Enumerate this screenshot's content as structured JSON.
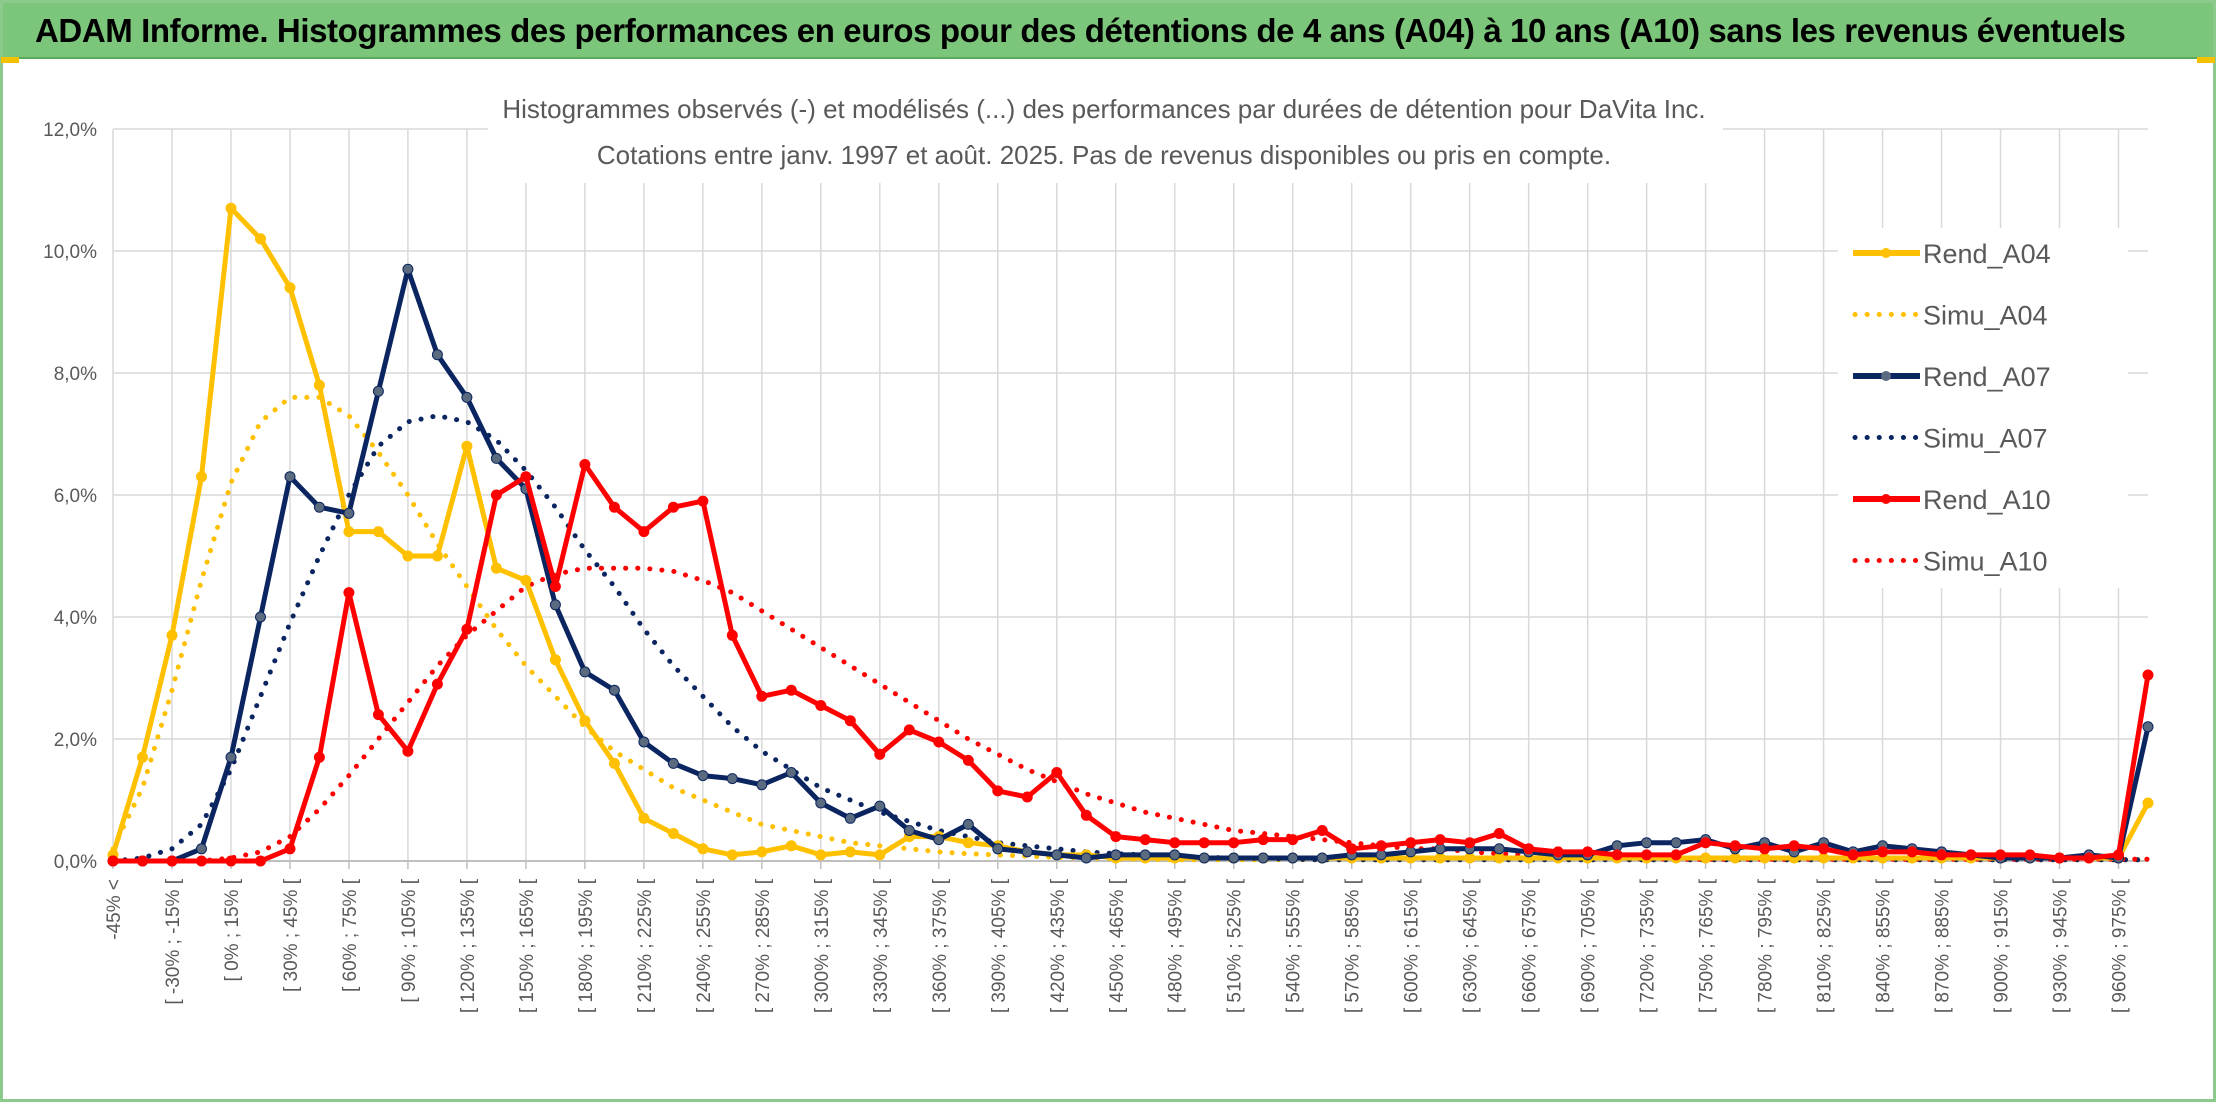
{
  "header": {
    "title": "ADAM Informe. Histogrammes des performances en euros pour des détentions de 4 ans (A04) à 10 ans (A10) sans les revenus éventuels"
  },
  "colors": {
    "header_bg": "#7cc67c",
    "grid": "#d9d9d9",
    "A04": "#ffc000",
    "A07": "#0b2560",
    "A10": "#ff0000",
    "A07_marker": "#5b6b7f"
  },
  "chart_data": {
    "type": "line",
    "title_line1": "Histogrammes observés (-) et modélisés (...) des performances par durées de détention pour DaVita Inc.",
    "title_line2": "Cotations entre janv. 1997 et août. 2025. Pas de revenus disponibles ou pris en compte.",
    "ylim": [
      0,
      12
    ],
    "yticks": [
      "0,0%",
      "2,0%",
      "4,0%",
      "6,0%",
      "8,0%",
      "10,0%",
      "12,0%"
    ],
    "grid": true,
    "legend_position": "right",
    "x_tick_labels": [
      "-45% <",
      "[ -30% ; -15% [",
      "[ 0% ; 15% [",
      "[ 30% ; 45% [",
      "[ 60% ; 75% [",
      "[ 90% ; 105% [",
      "[ 120% ; 135% [",
      "[ 150% ; 165% [",
      "[ 180% ; 195% [",
      "[ 210% ; 225% [",
      "[ 240% ; 255% [",
      "[ 270% ; 285% [",
      "[ 300% ; 315% [",
      "[ 330% ; 345% [",
      "[ 360% ; 375% [",
      "[ 390% ; 405% [",
      "[ 420% ; 435% [",
      "[ 450% ; 465% [",
      "[ 480% ; 495% [",
      "[ 510% ; 525% [",
      "[ 540% ; 555% [",
      "[ 570% ; 585% [",
      "[ 600% ; 615% [",
      "[ 630% ; 645% [",
      "[ 660% ; 675% [",
      "[ 690% ; 705% [",
      "[ 720% ; 735% [",
      "[ 750% ; 765% [",
      "[ 780% ; 795% [",
      "[ 810% ; 825% [",
      "[ 840% ; 855% [",
      "[ 870% ; 885% [",
      "[ 900% ; 915% [",
      "[ 930% ; 945% [",
      "[ 960% ; 975% ["
    ],
    "series": [
      {
        "name": "Rend_A04",
        "style": "solid",
        "color": "#ffc000",
        "values": [
          0.1,
          1.7,
          3.7,
          6.3,
          10.7,
          10.2,
          9.4,
          7.8,
          5.4,
          5.4,
          5.0,
          5.0,
          6.8,
          4.8,
          4.6,
          3.3,
          2.3,
          1.6,
          0.7,
          0.45,
          0.2,
          0.1,
          0.15,
          0.25,
          0.1,
          0.15,
          0.1,
          0.4,
          0.4,
          0.3,
          0.25,
          0.15,
          0.1,
          0.1,
          0.05,
          0.05,
          0.05,
          0.05,
          0.05,
          0.05,
          0.05,
          0.05,
          0.05,
          0.05,
          0.05,
          0.05,
          0.05,
          0.05,
          0.05,
          0.05,
          0.05,
          0.05,
          0.05,
          0.05,
          0.05,
          0.05,
          0.05,
          0.05,
          0.05,
          0.05,
          0.05,
          0.05,
          0.05,
          0.05,
          0.05,
          0.05,
          0.05,
          0.05,
          0.05,
          0.95
        ]
      },
      {
        "name": "Simu_A04",
        "style": "dotted",
        "color": "#ffc000",
        "values": [
          0.2,
          1.2,
          2.8,
          4.6,
          6.2,
          7.2,
          7.6,
          7.6,
          7.3,
          6.7,
          6.0,
          5.2,
          4.5,
          3.8,
          3.2,
          2.7,
          2.2,
          1.8,
          1.5,
          1.2,
          1.0,
          0.8,
          0.6,
          0.5,
          0.4,
          0.3,
          0.25,
          0.2,
          0.15,
          0.12,
          0.1,
          0.08,
          0.06,
          0.05,
          0.04,
          0.03,
          0.02,
          0.02,
          0.02,
          0.02,
          0.02,
          0.02,
          0.02,
          0.02,
          0.02,
          0.02,
          0.02,
          0.02,
          0.02,
          0.02,
          0.02,
          0.02,
          0.02,
          0.02,
          0.02,
          0.02,
          0.02,
          0.02,
          0.02,
          0.02,
          0.02,
          0.02,
          0.02,
          0.02,
          0.02,
          0.02,
          0.02,
          0.02,
          0.02,
          0.02
        ]
      },
      {
        "name": "Rend_A07",
        "style": "solid",
        "color": "#0b2560",
        "values": [
          0.0,
          0.0,
          0.0,
          0.2,
          1.7,
          4.0,
          6.3,
          5.8,
          5.7,
          7.7,
          9.7,
          8.3,
          7.6,
          6.6,
          6.1,
          4.2,
          3.1,
          2.8,
          1.95,
          1.6,
          1.4,
          1.35,
          1.25,
          1.45,
          0.95,
          0.7,
          0.9,
          0.5,
          0.35,
          0.6,
          0.2,
          0.15,
          0.1,
          0.05,
          0.1,
          0.1,
          0.1,
          0.05,
          0.05,
          0.05,
          0.05,
          0.05,
          0.1,
          0.1,
          0.15,
          0.2,
          0.2,
          0.2,
          0.15,
          0.1,
          0.1,
          0.25,
          0.3,
          0.3,
          0.35,
          0.2,
          0.3,
          0.15,
          0.3,
          0.15,
          0.25,
          0.2,
          0.15,
          0.1,
          0.05,
          0.05,
          0.05,
          0.1,
          0.05,
          2.2
        ]
      },
      {
        "name": "Simu_A07",
        "style": "dotted",
        "color": "#0b2560",
        "values": [
          0.0,
          0.05,
          0.2,
          0.6,
          1.5,
          2.7,
          3.9,
          5.0,
          6.0,
          6.8,
          7.2,
          7.3,
          7.2,
          6.9,
          6.4,
          5.8,
          5.1,
          4.5,
          3.8,
          3.2,
          2.7,
          2.2,
          1.8,
          1.5,
          1.2,
          1.0,
          0.8,
          0.65,
          0.5,
          0.4,
          0.3,
          0.25,
          0.2,
          0.15,
          0.12,
          0.1,
          0.08,
          0.06,
          0.05,
          0.04,
          0.03,
          0.02,
          0.02,
          0.02,
          0.02,
          0.02,
          0.02,
          0.02,
          0.02,
          0.02,
          0.02,
          0.02,
          0.02,
          0.02,
          0.02,
          0.02,
          0.02,
          0.02,
          0.02,
          0.02,
          0.02,
          0.02,
          0.02,
          0.02,
          0.02,
          0.02,
          0.02,
          0.02,
          0.02,
          0.02
        ]
      },
      {
        "name": "Rend_A10",
        "style": "solid",
        "color": "#ff0000",
        "values": [
          0.0,
          0.0,
          0.0,
          0.0,
          0.0,
          0.0,
          0.2,
          1.7,
          4.4,
          2.4,
          1.8,
          2.9,
          3.8,
          6.0,
          6.3,
          4.5,
          6.5,
          5.8,
          5.4,
          5.8,
          5.9,
          3.7,
          2.7,
          2.8,
          2.55,
          2.3,
          1.75,
          2.15,
          1.95,
          1.65,
          1.15,
          1.05,
          1.45,
          0.75,
          0.4,
          0.35,
          0.3,
          0.3,
          0.3,
          0.35,
          0.35,
          0.5,
          0.2,
          0.25,
          0.3,
          0.35,
          0.3,
          0.45,
          0.2,
          0.15,
          0.15,
          0.1,
          0.1,
          0.1,
          0.3,
          0.25,
          0.2,
          0.25,
          0.2,
          0.1,
          0.15,
          0.15,
          0.1,
          0.1,
          0.1,
          0.1,
          0.05,
          0.05,
          0.1,
          3.05
        ]
      },
      {
        "name": "Simu_A10",
        "style": "dotted",
        "color": "#ff0000",
        "values": [
          0.0,
          0.0,
          0.0,
          0.0,
          0.05,
          0.15,
          0.4,
          0.85,
          1.4,
          2.0,
          2.6,
          3.2,
          3.7,
          4.1,
          4.5,
          4.7,
          4.8,
          4.8,
          4.8,
          4.75,
          4.6,
          4.4,
          4.1,
          3.8,
          3.5,
          3.2,
          2.9,
          2.6,
          2.3,
          2.0,
          1.75,
          1.5,
          1.3,
          1.1,
          0.95,
          0.8,
          0.7,
          0.6,
          0.5,
          0.45,
          0.4,
          0.35,
          0.3,
          0.25,
          0.2,
          0.2,
          0.15,
          0.12,
          0.1,
          0.08,
          0.06,
          0.05,
          0.04,
          0.03,
          0.03,
          0.03,
          0.03,
          0.03,
          0.03,
          0.03,
          0.03,
          0.03,
          0.03,
          0.03,
          0.03,
          0.03,
          0.03,
          0.03,
          0.03,
          0.03
        ]
      }
    ]
  }
}
